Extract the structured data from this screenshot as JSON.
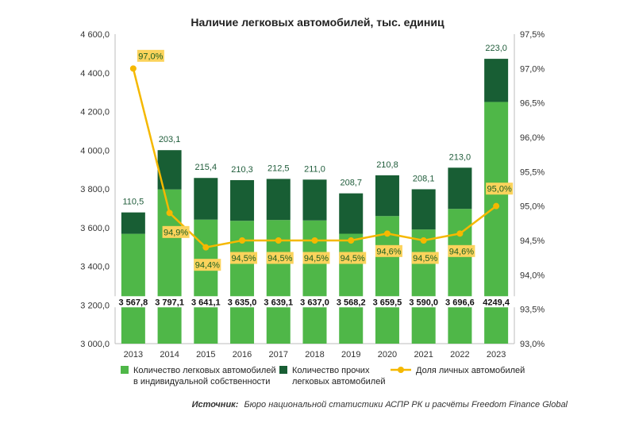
{
  "chart_data": {
    "type": "bar",
    "stacked": true,
    "title": "Наличие легковых автомобилей, тыс. единиц",
    "categories": [
      "2013",
      "2014",
      "2015",
      "2016",
      "2017",
      "2018",
      "2019",
      "2020",
      "2021",
      "2022",
      "2023"
    ],
    "series": [
      {
        "name": "Количество легковых автомобилей в индивидуальной собственности",
        "color": "#4fb748",
        "values": [
          3567.8,
          3797.1,
          3641.1,
          3635.0,
          3639.1,
          3637.0,
          3568.2,
          3659.5,
          3590.0,
          3696.6,
          4249.4
        ],
        "labels": [
          "3 567,8",
          "3 797,1",
          "3 641,1",
          "3 635,0",
          "3 639,1",
          "3 637,0",
          "3 568,2",
          "3 659,5",
          "3 590,0",
          "3 696,6",
          "4249,4"
        ]
      },
      {
        "name": "Количество прочих легковых автомобилей",
        "color": "#185e34",
        "values": [
          110.5,
          203.1,
          215.4,
          210.3,
          212.5,
          211.0,
          208.7,
          210.8,
          208.1,
          213.0,
          223.0
        ],
        "labels": [
          "110,5",
          "203,1",
          "215,4",
          "210,3",
          "212,5",
          "211,0",
          "208,7",
          "210,8",
          "208,1",
          "213,0",
          "223,0"
        ]
      },
      {
        "name": "Доля личных автомобилей",
        "type": "line",
        "axis": "right",
        "color": "#f5b800",
        "values": [
          97.0,
          94.9,
          94.4,
          94.5,
          94.5,
          94.5,
          94.5,
          94.6,
          94.5,
          94.6,
          95.0
        ],
        "labels": [
          "97,0%",
          "94,9%",
          "94,4%",
          "94,5%",
          "94,5%",
          "94,5%",
          "94,5%",
          "94,6%",
          "94,5%",
          "94,6%",
          "95,0%"
        ]
      }
    ],
    "y_left": {
      "min": 3000,
      "max": 4600,
      "ticks": [
        3000,
        3200,
        3400,
        3600,
        3800,
        4000,
        4200,
        4400,
        4600
      ],
      "tick_labels": [
        "3 000,0",
        "3 200,0",
        "3 400,0",
        "3 600,0",
        "3 800,0",
        "4 000,0",
        "4 200,0",
        "4 400,0",
        "4 600,0"
      ]
    },
    "y_right": {
      "min": 93.0,
      "max": 97.5,
      "ticks": [
        93.0,
        93.5,
        94.0,
        94.5,
        95.0,
        95.5,
        96.0,
        96.5,
        97.0,
        97.5
      ],
      "tick_labels": [
        "93,0%",
        "93,5%",
        "94,0%",
        "94,5%",
        "95,0%",
        "95,5%",
        "96,0%",
        "96,5%",
        "97,0%",
        "97,5%"
      ]
    },
    "legend": {
      "position": "bottom",
      "items": [
        {
          "line1": "Количество легковых автомобилей",
          "line2": "в индивидуальной собственности"
        },
        {
          "line1": "Количество прочих",
          "line2": "легковых автомобилей"
        },
        {
          "line1": "Доля личных автомобилей",
          "line2": ""
        }
      ]
    },
    "source_label": "Источник:",
    "source_text": "Бюро национальной статистики АСПР РК и расчёты Freedom Finance Global"
  }
}
